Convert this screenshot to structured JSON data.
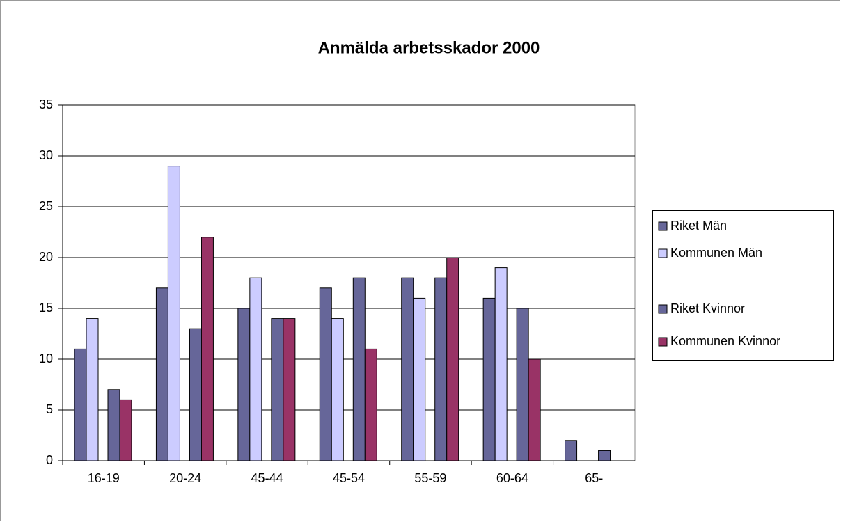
{
  "chart_data": {
    "type": "bar",
    "title": "Anmälda arbetsskador 2000",
    "categories": [
      "16-19",
      "20-24",
      "45-44",
      "45-54",
      "55-59",
      "60-64",
      "65-"
    ],
    "series": [
      {
        "name": "Riket Män",
        "color": "#666699",
        "values": [
          11,
          17,
          15,
          17,
          18,
          16,
          2
        ]
      },
      {
        "name": "Kommunen Män",
        "color": "#ccccff",
        "values": [
          14,
          29,
          18,
          14,
          16,
          19,
          null
        ]
      },
      {
        "name": "Riket Kvinnor",
        "color": "#666699",
        "values": [
          7,
          13,
          14,
          18,
          18,
          15,
          1
        ]
      },
      {
        "name": "Kommunen Kvinnor",
        "color": "#993366",
        "values": [
          6,
          22,
          14,
          11,
          20,
          10,
          null
        ]
      }
    ],
    "ylim": [
      0,
      35
    ],
    "yticks": [
      0,
      5,
      10,
      15,
      20,
      25,
      30,
      35
    ],
    "grid": true,
    "legend": "right"
  }
}
